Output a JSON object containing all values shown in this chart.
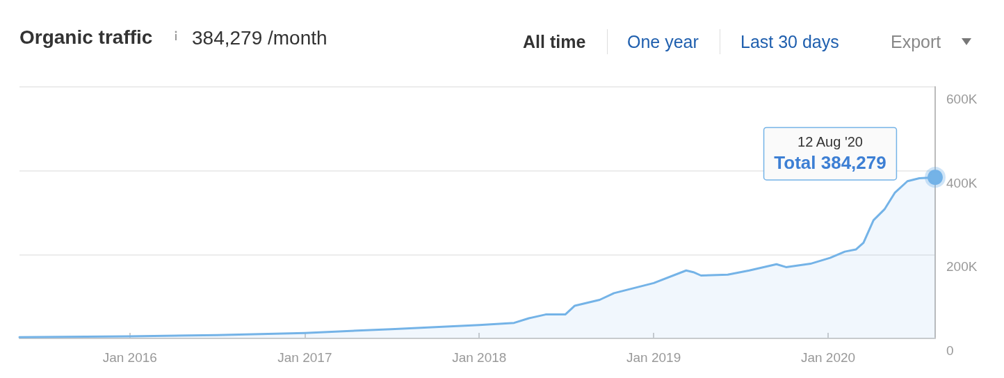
{
  "chart_data": {
    "type": "area",
    "title": "Organic traffic",
    "subtitle": "384,279 /month",
    "annotations": [
      "All time",
      "One year",
      "Last 30 days",
      "Export",
      {
        "text": "12 Aug '20\nTotal 384,279",
        "x": "2020-08-12",
        "y": 384279
      }
    ],
    "x": [
      "2015-05-15",
      "2016-01-01",
      "2016-07-01",
      "2017-01-01",
      "2017-07-01",
      "2018-01-01",
      "2018-03-15",
      "2018-04-15",
      "2018-05-20",
      "2018-06-30",
      "2018-07-20",
      "2018-09-10",
      "2018-10-10",
      "2019-01-01",
      "2019-03-10",
      "2019-03-25",
      "2019-04-10",
      "2019-06-05",
      "2019-07-20",
      "2019-09-15",
      "2019-10-05",
      "2019-11-25",
      "2020-01-05",
      "2020-02-05",
      "2020-02-28",
      "2020-03-15",
      "2020-04-05",
      "2020-04-28",
      "2020-05-20",
      "2020-06-15",
      "2020-07-10",
      "2020-08-12"
    ],
    "series": [
      {
        "color": "#74b3e7",
        "values": [
          3000,
          5000,
          8000,
          13000,
          22000,
          32000,
          37000,
          48000,
          57000,
          57000,
          78000,
          92000,
          108000,
          132000,
          162000,
          158000,
          150000,
          152000,
          162000,
          177000,
          170000,
          178000,
          192000,
          207000,
          212000,
          228000,
          282000,
          308000,
          348000,
          375000,
          382000,
          384279
        ]
      }
    ],
    "xlim": [
      "2015-05-15",
      "2020-08-12"
    ],
    "xticks": [
      {
        "value": "2016-01-01",
        "label": "Jan 2016"
      },
      {
        "value": "2017-01-01",
        "label": "Jan 2017"
      },
      {
        "value": "2018-01-01",
        "label": "Jan 2018"
      },
      {
        "value": "2019-01-01",
        "label": "Jan 2019"
      },
      {
        "value": "2020-01-01",
        "label": "Jan 2020"
      }
    ],
    "ylim": [
      0,
      600000
    ],
    "yticks": [
      0,
      {
        "value": 200000,
        "label": "200K"
      },
      {
        "value": 400000,
        "label": "400K"
      },
      {
        "value": 600000,
        "label": "600K"
      }
    ],
    "grid": "y",
    "marker": "none",
    "line_style": "solid"
  }
}
